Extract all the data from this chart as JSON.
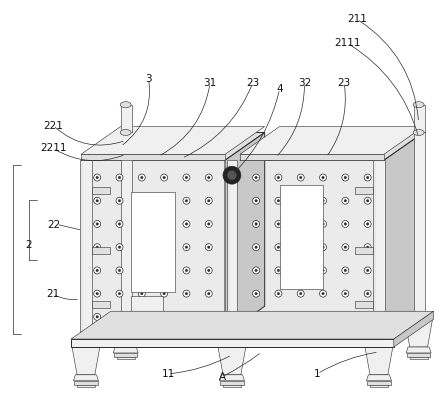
{
  "background_color": "#ffffff",
  "figure_width": 4.43,
  "figure_height": 4.05,
  "dpi": 100,
  "line_color": "#2a2a2a",
  "fill_light": "#f0f0f0",
  "fill_mid": "#e0e0e0",
  "fill_dark": "#c8c8c8",
  "panel_fill": "#ebebeb",
  "white": "#ffffff",
  "label_fontsize": 7.5
}
